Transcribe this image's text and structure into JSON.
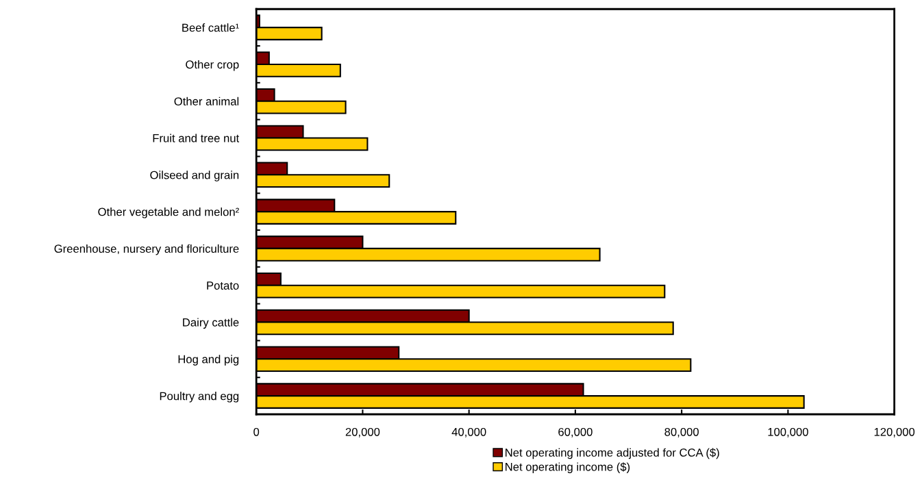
{
  "chart_data": {
    "type": "bar",
    "orientation": "horizontal",
    "categories": [
      "Beef cattle¹",
      "Other crop",
      "Other animal",
      "Fruit and tree nut",
      "Oilseed and grain",
      "Other vegetable and melon²",
      "Greenhouse, nursery and floriculture",
      "Potato",
      "Dairy cattle",
      "Hog and pig",
      "Poultry and egg"
    ],
    "series": [
      {
        "name": "Net operating income adjusted for CCA ($)",
        "color": "#800000",
        "values": [
          600,
          2400,
          3400,
          8800,
          5800,
          14700,
          20000,
          4600,
          40000,
          26800,
          61500
        ]
      },
      {
        "name": "Net operating income ($)",
        "color": "#ffcc00",
        "values": [
          12300,
          15800,
          16800,
          20900,
          25000,
          37500,
          64600,
          76800,
          78400,
          81700,
          103000
        ]
      }
    ],
    "xlim": [
      0,
      120000
    ],
    "xticks": [
      {
        "value": 0,
        "label": "0"
      },
      {
        "value": 20000,
        "label": "20,000"
      },
      {
        "value": 40000,
        "label": "40,000"
      },
      {
        "value": 60000,
        "label": "60,000"
      },
      {
        "value": 80000,
        "label": "80,000"
      },
      {
        "value": 100000,
        "label": "100,000"
      },
      {
        "value": 120000,
        "label": "120,000"
      }
    ],
    "grid": false,
    "legend": "bottom"
  }
}
